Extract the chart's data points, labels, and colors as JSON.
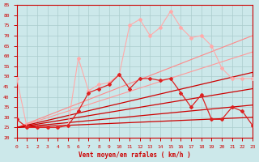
{
  "background_color": "#cce8ea",
  "grid_color": "#aacccc",
  "xlabel": "Vent moyen/en rafales ( km/h )",
  "xlabel_color": "#cc0000",
  "tick_color": "#cc0000",
  "xlim": [
    0,
    23
  ],
  "ylim": [
    20,
    85
  ],
  "yticks": [
    20,
    25,
    30,
    35,
    40,
    45,
    50,
    55,
    60,
    65,
    70,
    75,
    80,
    85
  ],
  "xticks": [
    0,
    1,
    2,
    3,
    4,
    5,
    6,
    7,
    8,
    9,
    10,
    11,
    12,
    13,
    14,
    15,
    16,
    17,
    18,
    19,
    20,
    21,
    22,
    23
  ],
  "lines": [
    {
      "color": "#ffaaaa",
      "linewidth": 0.8,
      "marker": "D",
      "markersize": 2.0,
      "data": [
        [
          0,
          49
        ],
        [
          1,
          25
        ],
        [
          2,
          25
        ],
        [
          3,
          25
        ],
        [
          4,
          25
        ],
        [
          5,
          26
        ],
        [
          6,
          59
        ],
        [
          7,
          43
        ],
        [
          8,
          46
        ],
        [
          9,
          47
        ],
        [
          10,
          51
        ],
        [
          11,
          75
        ],
        [
          12,
          78
        ],
        [
          13,
          70
        ],
        [
          14,
          74
        ],
        [
          15,
          82
        ],
        [
          16,
          74
        ],
        [
          17,
          69
        ],
        [
          18,
          70
        ],
        [
          19,
          65
        ],
        [
          20,
          54
        ],
        [
          21,
          49
        ],
        [
          22,
          49
        ],
        [
          23,
          49
        ]
      ]
    },
    {
      "color": "#ff8888",
      "linewidth": 0.8,
      "marker": null,
      "markersize": 0,
      "data": [
        [
          0,
          25
        ],
        [
          23,
          70
        ]
      ]
    },
    {
      "color": "#ff9999",
      "linewidth": 0.8,
      "marker": null,
      "markersize": 0,
      "data": [
        [
          0,
          25
        ],
        [
          23,
          62
        ]
      ]
    },
    {
      "color": "#dd2222",
      "linewidth": 0.9,
      "marker": "D",
      "markersize": 2.0,
      "data": [
        [
          0,
          29
        ],
        [
          1,
          25
        ],
        [
          2,
          25
        ],
        [
          3,
          25
        ],
        [
          4,
          25
        ],
        [
          5,
          26
        ],
        [
          6,
          33
        ],
        [
          7,
          42
        ],
        [
          8,
          44
        ],
        [
          9,
          46
        ],
        [
          10,
          51
        ],
        [
          11,
          44
        ],
        [
          12,
          49
        ],
        [
          13,
          49
        ],
        [
          14,
          48
        ],
        [
          15,
          49
        ],
        [
          16,
          42
        ],
        [
          17,
          35
        ],
        [
          18,
          41
        ],
        [
          19,
          29
        ],
        [
          20,
          29
        ],
        [
          21,
          35
        ],
        [
          22,
          33
        ],
        [
          23,
          26
        ]
      ]
    },
    {
      "color": "#cc0000",
      "linewidth": 0.9,
      "marker": null,
      "markersize": 0,
      "data": [
        [
          0,
          25
        ],
        [
          23,
          52
        ]
      ]
    },
    {
      "color": "#cc0000",
      "linewidth": 0.9,
      "marker": null,
      "markersize": 0,
      "data": [
        [
          0,
          25
        ],
        [
          23,
          44
        ]
      ]
    },
    {
      "color": "#cc0000",
      "linewidth": 0.9,
      "marker": null,
      "markersize": 0,
      "data": [
        [
          0,
          25
        ],
        [
          23,
          36
        ]
      ]
    },
    {
      "color": "#cc0000",
      "linewidth": 0.9,
      "marker": null,
      "markersize": 0,
      "data": [
        [
          0,
          25
        ],
        [
          23,
          30
        ]
      ]
    }
  ]
}
